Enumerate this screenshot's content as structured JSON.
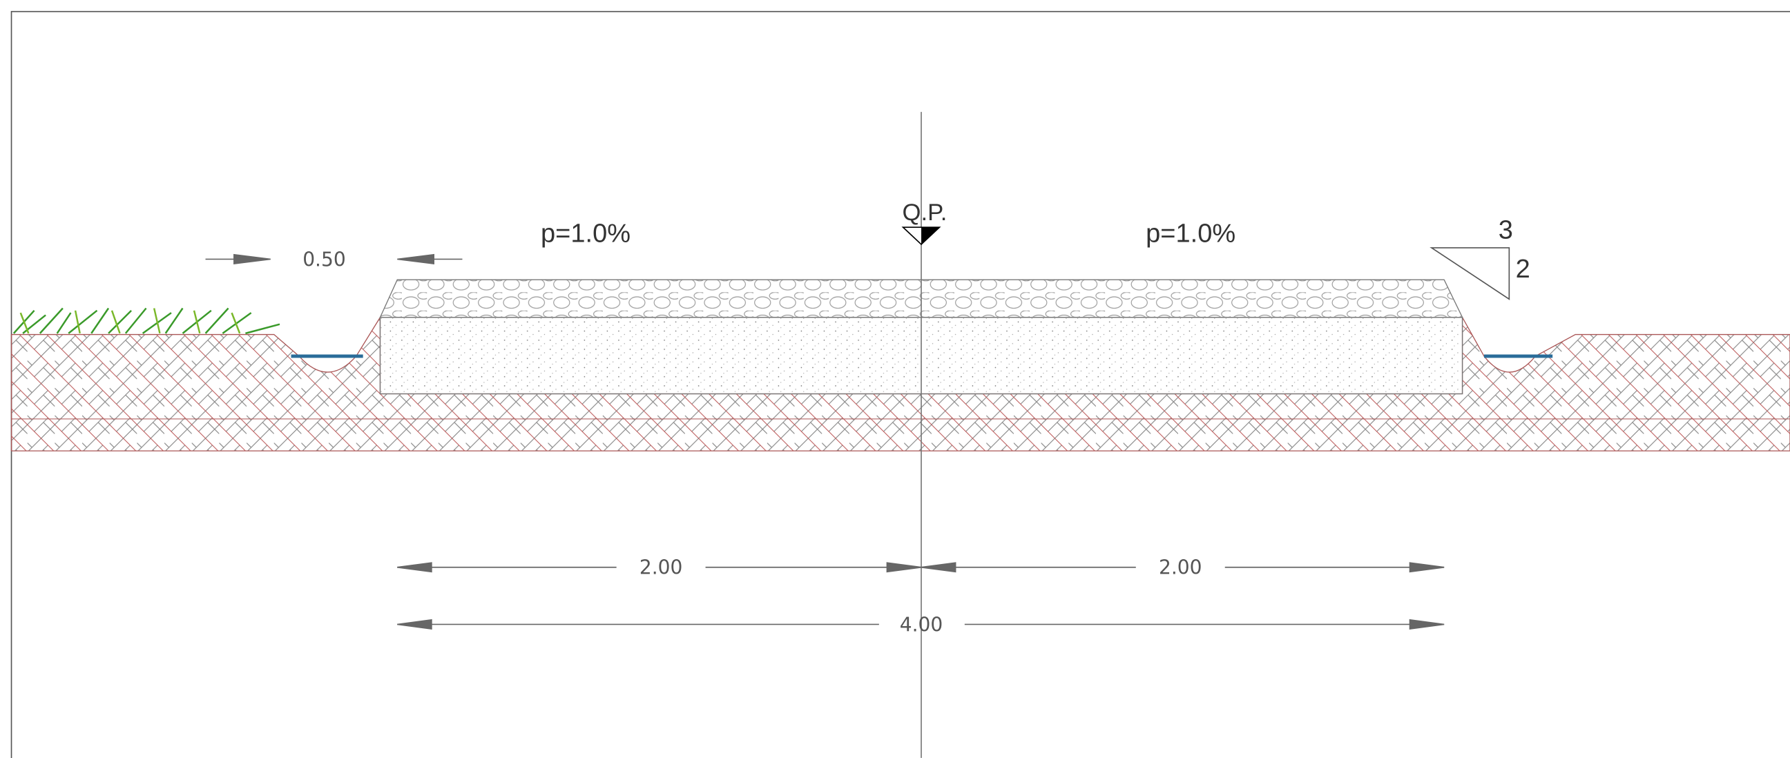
{
  "labels": {
    "ditch_width": "0.50",
    "slope_left": "p=1.0%",
    "axis_label": "Q.P.",
    "slope_right": "p=1.0%",
    "ratio_horizontal": "3",
    "ratio_vertical": "2",
    "half_width_left": "2.00",
    "half_width_right": "2.00",
    "total_width": "4.00"
  }
}
